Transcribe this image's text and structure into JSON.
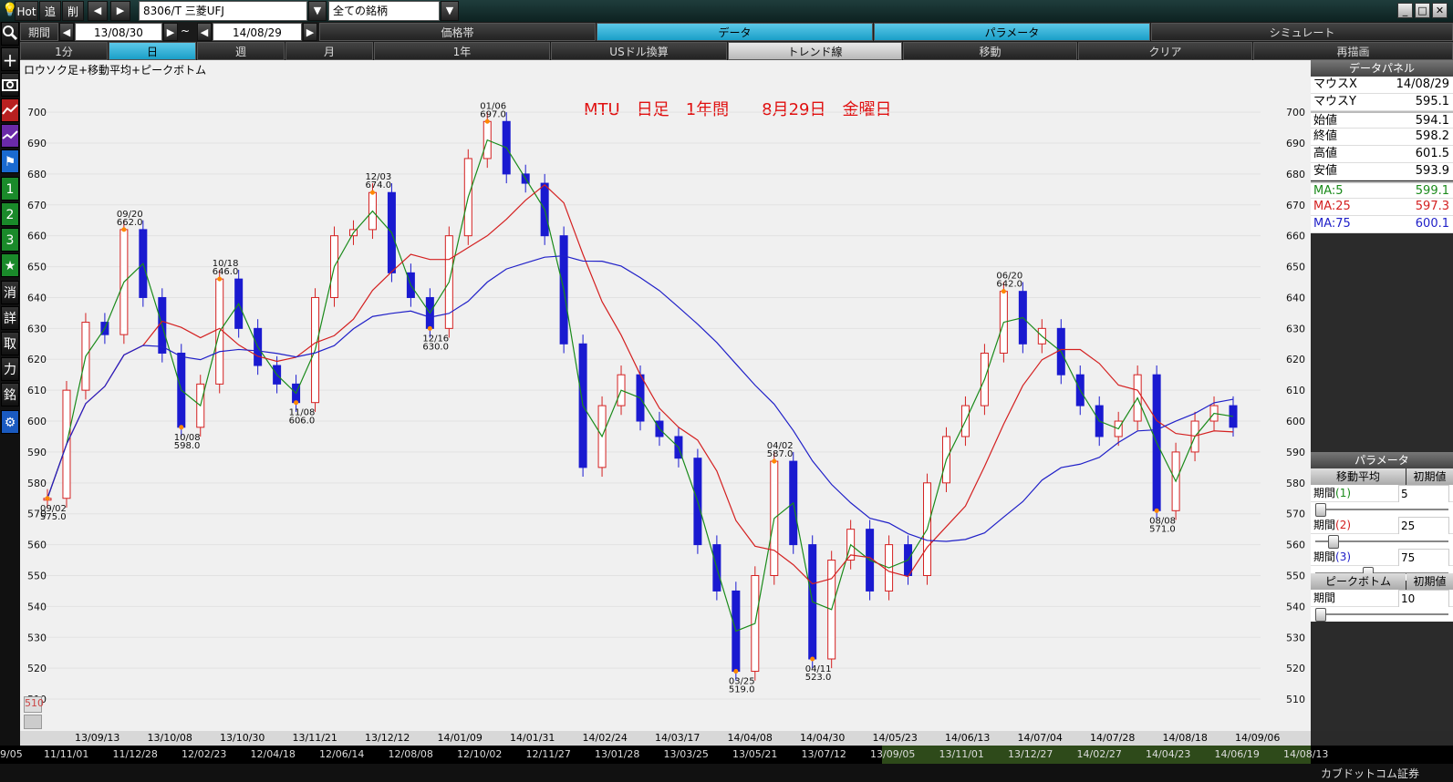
{
  "toolbar": {
    "hot": "Hot",
    "add": "追",
    "del": "削",
    "symbol": "8306/T 三菱UFJ",
    "universe": "全ての銘柄"
  },
  "period_bar": {
    "label": "期間",
    "from": "13/08/30",
    "tilde": "~",
    "to": "14/08/29",
    "tabs": [
      "価格帯",
      "データ",
      "パラメータ",
      "シミュレート"
    ],
    "active_tab": "データ"
  },
  "timeframe_bar": {
    "buttons": [
      "1分",
      "日",
      "週",
      "月",
      "1年",
      "USドル換算",
      "トレンド線",
      "移動",
      "クリア",
      "再描画"
    ],
    "active": "日"
  },
  "left_tools": [
    "search-icon",
    "plus-icon",
    "camera-icon",
    "chart-red-icon",
    "chart-purple-icon",
    "flag-icon",
    "1",
    "2",
    "3",
    "★",
    "消",
    "詳",
    "取",
    "力",
    "銘",
    "gear-icon"
  ],
  "chart": {
    "subtitle": "ロウソク足+移動平均+ピークボトム",
    "banner": "MTU　日足　1年間　　8月29日　金曜日",
    "y_ticks": [
      "700",
      "690",
      "680",
      "670",
      "660",
      "650",
      "640",
      "630",
      "620",
      "610",
      "600",
      "590",
      "580",
      "570",
      "560",
      "550",
      "540",
      "530",
      "520",
      "510"
    ],
    "x_ticks": [
      "13/09/13",
      "13/10/08",
      "13/10/30",
      "13/11/21",
      "13/12/12",
      "14/01/09",
      "14/01/31",
      "14/02/24",
      "14/03/17",
      "14/04/08",
      "14/04/30",
      "14/05/23",
      "14/06/13",
      "14/07/04",
      "14/07/28",
      "14/08/18",
      "14/09/06"
    ],
    "peaks": [
      {
        "date": "09/02",
        "value": "575.0"
      },
      {
        "date": "09/20",
        "value": "662.0"
      },
      {
        "date": "10/08",
        "value": "598.0"
      },
      {
        "date": "10/18",
        "value": "646.0"
      },
      {
        "date": "11/08",
        "value": "606.0"
      },
      {
        "date": "12/03",
        "value": "674.0"
      },
      {
        "date": "12/16",
        "value": "630.0"
      },
      {
        "date": "01/06",
        "value": "697.0"
      },
      {
        "date": "03/25",
        "value": "519.0"
      },
      {
        "date": "04/02",
        "value": "587.0"
      },
      {
        "date": "04/11",
        "value": "523.0"
      },
      {
        "date": "06/20",
        "value": "642.0"
      },
      {
        "date": "08/08",
        "value": "571.0"
      }
    ],
    "bottom_marker": "510"
  },
  "chart_data": {
    "type": "candlestick",
    "title": "MTU　日足　1年間　　8月29日　金曜日",
    "ylim": [
      505,
      708
    ],
    "series": [
      {
        "name": "MA:5",
        "color": "#1a8a1a"
      },
      {
        "name": "MA:25",
        "color": "#d42020"
      },
      {
        "name": "MA:75",
        "color": "#2020c8"
      }
    ],
    "close_path": [
      [
        "09/02",
        575
      ],
      [
        "09/05",
        610
      ],
      [
        "09/10",
        632
      ],
      [
        "09/13",
        628
      ],
      [
        "09/20",
        662
      ],
      [
        "09/26",
        640
      ],
      [
        "10/02",
        622
      ],
      [
        "10/08",
        598
      ],
      [
        "10/11",
        612
      ],
      [
        "10/18",
        646
      ],
      [
        "10/24",
        630
      ],
      [
        "10/30",
        618
      ],
      [
        "11/05",
        612
      ],
      [
        "11/08",
        606
      ],
      [
        "11/14",
        640
      ],
      [
        "11/21",
        660
      ],
      [
        "11/28",
        662
      ],
      [
        "12/03",
        674
      ],
      [
        "12/06",
        648
      ],
      [
        "12/12",
        640
      ],
      [
        "12/16",
        630
      ],
      [
        "12/20",
        660
      ],
      [
        "12/27",
        685
      ],
      [
        "01/06",
        697
      ],
      [
        "01/10",
        680
      ],
      [
        "01/17",
        677
      ],
      [
        "01/24",
        660
      ],
      [
        "01/31",
        625
      ],
      [
        "02/05",
        585
      ],
      [
        "02/12",
        605
      ],
      [
        "02/18",
        615
      ],
      [
        "02/24",
        600
      ],
      [
        "03/03",
        595
      ],
      [
        "03/07",
        588
      ],
      [
        "03/12",
        560
      ],
      [
        "03/17",
        545
      ],
      [
        "03/25",
        519
      ],
      [
        "03/28",
        550
      ],
      [
        "04/02",
        587
      ],
      [
        "04/07",
        560
      ],
      [
        "04/11",
        523
      ],
      [
        "04/17",
        555
      ],
      [
        "04/22",
        565
      ],
      [
        "04/30",
        545
      ],
      [
        "05/09",
        560
      ],
      [
        "05/16",
        550
      ],
      [
        "05/23",
        580
      ],
      [
        "05/30",
        595
      ],
      [
        "06/06",
        605
      ],
      [
        "06/13",
        622
      ],
      [
        "06/20",
        642
      ],
      [
        "06/27",
        625
      ],
      [
        "07/04",
        630
      ],
      [
        "07/10",
        615
      ],
      [
        "07/17",
        605
      ],
      [
        "07/22",
        595
      ],
      [
        "07/28",
        600
      ],
      [
        "08/01",
        615
      ],
      [
        "08/08",
        571
      ],
      [
        "08/14",
        590
      ],
      [
        "08/18",
        600
      ],
      [
        "08/22",
        605
      ],
      [
        "08/29",
        598
      ]
    ]
  },
  "data_panel": {
    "title": "データパネル",
    "rows": [
      {
        "k": "マウスX",
        "v": "14/08/29"
      },
      {
        "k": "マウスY",
        "v": "595.1"
      },
      {
        "k": "始値",
        "v": "594.1"
      },
      {
        "k": "終値",
        "v": "598.2"
      },
      {
        "k": "高値",
        "v": "601.5"
      },
      {
        "k": "安値",
        "v": "593.9"
      }
    ],
    "ma_rows": [
      {
        "k": "MA:5",
        "v": "599.1",
        "color": "#1a8a1a"
      },
      {
        "k": "MA:25",
        "v": "597.3",
        "color": "#d42020"
      },
      {
        "k": "MA:75",
        "v": "600.1",
        "color": "#2020c8"
      }
    ]
  },
  "param_panel": {
    "title": "パラメータ",
    "ma_header": "移動平均",
    "init": "初期値",
    "p1_label": "期間",
    "p1_num": "(1)",
    "p1_val": "5",
    "p1_fill": 0.0,
    "p2_label": "期間",
    "p2_num": "(2)",
    "p2_val": "25",
    "p2_fill": 0.1,
    "p3_label": "期間",
    "p3_num": "(3)",
    "p3_val": "75",
    "p3_fill": 0.38,
    "pb_header": "ピークボトム",
    "pb_init": "初期値",
    "pb_label": "期間",
    "pb_val": "10",
    "pb_fill": 0.0
  },
  "nav_dates": [
    "9/05",
    "11/11/01",
    "11/12/28",
    "12/02/23",
    "12/04/18",
    "12/06/14",
    "12/08/08",
    "12/10/02",
    "12/11/27",
    "13/01/28",
    "13/03/25",
    "13/05/21",
    "13/07/12",
    "13/09/05",
    "13/11/01",
    "13/12/27",
    "14/02/27",
    "14/04/23",
    "14/06/19",
    "14/08/13"
  ],
  "brand": "カブドットコム証券"
}
